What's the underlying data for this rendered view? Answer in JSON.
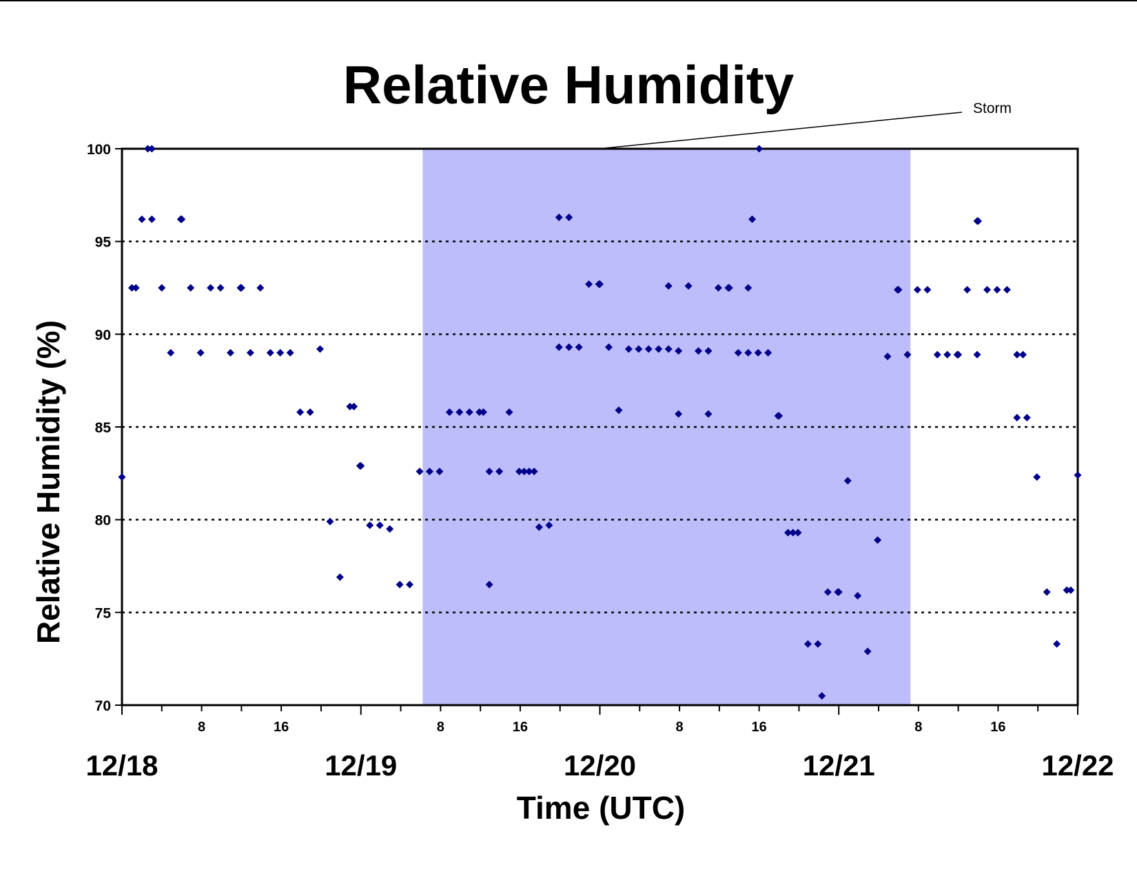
{
  "chart_data": {
    "type": "scatter",
    "title": "Relative Humidity",
    "xlabel": "Time (UTC)",
    "ylabel": "Relative Humidity (%)",
    "x_unit": "hours since 12/18 00 UTC",
    "xlim": [
      0,
      96
    ],
    "ylim": [
      70,
      100
    ],
    "y_ticks": [
      70,
      75,
      80,
      85,
      90,
      95,
      100
    ],
    "gridlines": "dotted horizontal at 75, 80, 85, 90, 95",
    "date_labels": [
      "12/18",
      "12/19",
      "12/20",
      "12/21",
      "12/22"
    ],
    "hour_tick_labels": [
      "8",
      "16",
      "8",
      "16",
      "8",
      "16",
      "8",
      "16"
    ],
    "marker_color": "#00008B",
    "shaded_region": {
      "label": "Storm",
      "x_range": [
        30.2,
        79.2
      ],
      "color": "#BDBDFB"
    },
    "points": [
      [
        0.0,
        82.3
      ],
      [
        1.0,
        92.5
      ],
      [
        1.4,
        92.5
      ],
      [
        2.0,
        96.2
      ],
      [
        2.6,
        100.0
      ],
      [
        3.0,
        100.0
      ],
      [
        3.0,
        96.2
      ],
      [
        4.0,
        92.5
      ],
      [
        4.9,
        89.0
      ],
      [
        5.9,
        96.2
      ],
      [
        6.0,
        96.2
      ],
      [
        6.9,
        92.5
      ],
      [
        7.9,
        89.0
      ],
      [
        8.9,
        92.5
      ],
      [
        9.9,
        92.5
      ],
      [
        10.9,
        89.0
      ],
      [
        11.9,
        92.5
      ],
      [
        12.0,
        92.5
      ],
      [
        12.9,
        89.0
      ],
      [
        13.9,
        92.5
      ],
      [
        14.9,
        89.0
      ],
      [
        15.9,
        89.0
      ],
      [
        16.9,
        89.0
      ],
      [
        17.9,
        85.8
      ],
      [
        18.9,
        85.8
      ],
      [
        19.9,
        89.2
      ],
      [
        20.9,
        79.9
      ],
      [
        21.9,
        76.9
      ],
      [
        22.9,
        86.1
      ],
      [
        23.3,
        86.1
      ],
      [
        23.9,
        82.9
      ],
      [
        24.0,
        82.9
      ],
      [
        24.9,
        79.7
      ],
      [
        25.9,
        79.7
      ],
      [
        26.9,
        79.5
      ],
      [
        27.9,
        76.5
      ],
      [
        28.9,
        76.5
      ],
      [
        29.9,
        82.6
      ],
      [
        30.9,
        82.6
      ],
      [
        31.9,
        82.6
      ],
      [
        32.9,
        85.8
      ],
      [
        33.9,
        85.8
      ],
      [
        34.9,
        85.8
      ],
      [
        35.9,
        85.8
      ],
      [
        36.3,
        85.8
      ],
      [
        36.9,
        76.5
      ],
      [
        36.9,
        82.6
      ],
      [
        37.9,
        82.6
      ],
      [
        38.9,
        85.8
      ],
      [
        39.9,
        82.6
      ],
      [
        40.4,
        82.6
      ],
      [
        40.9,
        82.6
      ],
      [
        41.4,
        82.6
      ],
      [
        41.9,
        79.6
      ],
      [
        42.9,
        79.7
      ],
      [
        43.9,
        96.3
      ],
      [
        43.9,
        89.3
      ],
      [
        44.9,
        96.3
      ],
      [
        44.9,
        89.3
      ],
      [
        45.9,
        89.3
      ],
      [
        46.9,
        92.7
      ],
      [
        47.9,
        92.7
      ],
      [
        48.0,
        92.7
      ],
      [
        48.9,
        89.3
      ],
      [
        49.9,
        85.9
      ],
      [
        50.9,
        89.2
      ],
      [
        51.9,
        89.2
      ],
      [
        52.9,
        89.2
      ],
      [
        53.9,
        89.2
      ],
      [
        54.9,
        89.2
      ],
      [
        54.9,
        92.6
      ],
      [
        55.9,
        89.1
      ],
      [
        55.9,
        85.7
      ],
      [
        56.9,
        92.6
      ],
      [
        57.9,
        89.1
      ],
      [
        58.9,
        89.1
      ],
      [
        58.9,
        85.7
      ],
      [
        59.9,
        92.5
      ],
      [
        60.9,
        92.5
      ],
      [
        61.0,
        92.5
      ],
      [
        61.9,
        89.0
      ],
      [
        62.9,
        89.0
      ],
      [
        62.9,
        92.5
      ],
      [
        63.3,
        96.2
      ],
      [
        63.9,
        89.0
      ],
      [
        64.0,
        100.0
      ],
      [
        64.9,
        89.0
      ],
      [
        65.9,
        85.6
      ],
      [
        66.0,
        85.6
      ],
      [
        66.9,
        79.3
      ],
      [
        67.4,
        79.3
      ],
      [
        67.9,
        79.3
      ],
      [
        68.9,
        73.3
      ],
      [
        69.9,
        73.3
      ],
      [
        70.3,
        70.5
      ],
      [
        70.9,
        76.1
      ],
      [
        71.9,
        76.1
      ],
      [
        72.0,
        76.1
      ],
      [
        72.9,
        82.1
      ],
      [
        73.9,
        75.9
      ],
      [
        74.9,
        72.9
      ],
      [
        75.9,
        78.9
      ],
      [
        76.9,
        88.8
      ],
      [
        77.9,
        92.4
      ],
      [
        78.0,
        92.4
      ],
      [
        78.9,
        88.9
      ],
      [
        79.9,
        92.4
      ],
      [
        80.9,
        92.4
      ],
      [
        81.9,
        88.9
      ],
      [
        82.9,
        88.9
      ],
      [
        83.9,
        88.9
      ],
      [
        84.0,
        88.9
      ],
      [
        84.9,
        92.4
      ],
      [
        85.9,
        96.1
      ],
      [
        86.0,
        96.1
      ],
      [
        85.9,
        88.9
      ],
      [
        86.9,
        92.4
      ],
      [
        87.9,
        92.4
      ],
      [
        88.9,
        92.4
      ],
      [
        89.9,
        88.9
      ],
      [
        89.9,
        85.5
      ],
      [
        90.5,
        88.9
      ],
      [
        90.9,
        85.5
      ],
      [
        91.9,
        82.3
      ],
      [
        92.9,
        76.1
      ],
      [
        93.9,
        73.3
      ],
      [
        94.9,
        76.2
      ],
      [
        95.3,
        76.2
      ],
      [
        96.0,
        82.4
      ]
    ]
  }
}
